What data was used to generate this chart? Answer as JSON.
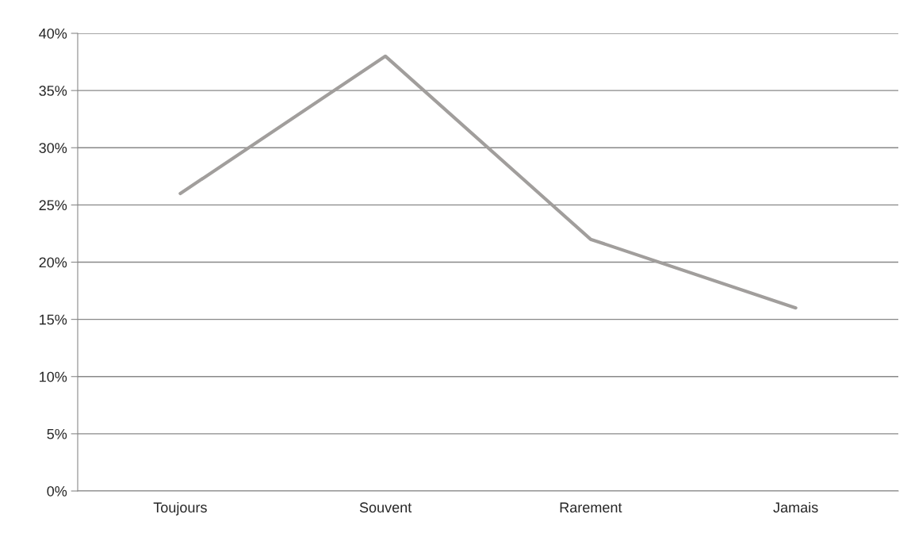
{
  "chart_data": {
    "type": "line",
    "categories": [
      "Toujours",
      "Souvent",
      "Rarement",
      "Jamais"
    ],
    "series": [
      {
        "color": "#a19e9c",
        "values": [
          26,
          38,
          22,
          16
        ]
      }
    ],
    "ylim": [
      0,
      40
    ],
    "yticks": [
      {
        "value": 0,
        "label": "0%"
      },
      {
        "value": 5,
        "label": "5%"
      },
      {
        "value": 10,
        "label": "10%"
      },
      {
        "value": 15,
        "label": "15%"
      },
      {
        "value": 20,
        "label": "20%"
      },
      {
        "value": 25,
        "label": "25%"
      },
      {
        "value": 30,
        "label": "30%"
      },
      {
        "value": 35,
        "label": "35%"
      },
      {
        "value": 40,
        "label": "40%"
      }
    ],
    "grid": "y",
    "marker": "none",
    "line_style": "solid"
  }
}
